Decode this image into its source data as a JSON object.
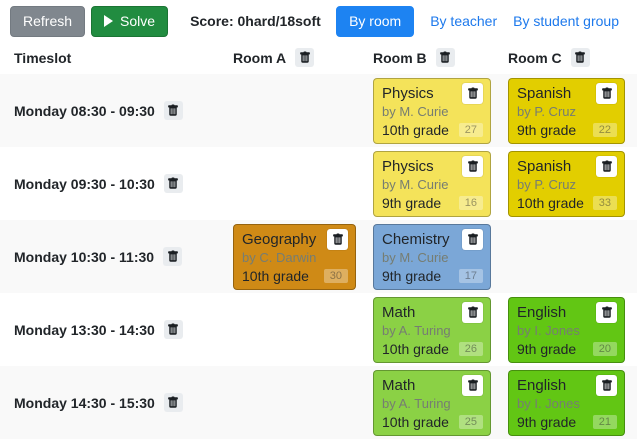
{
  "toolbar": {
    "refresh_label": "Refresh",
    "solve_label": "Solve",
    "score": "Score: 0hard/18soft"
  },
  "view_switcher": {
    "by_room_label": "By room",
    "by_teacher_label": "By teacher",
    "by_student_group_label": "By student group",
    "active_view": "By room",
    "accent_color": "#1d83f2"
  },
  "timetable": {
    "timeslot_header": "Timeslot",
    "room_headers": [
      "Room A",
      "Room B",
      "Room C"
    ],
    "rows": [
      {
        "timeslot": "Monday 08:30 - 09:30",
        "room_b": {
          "subject": "Physics",
          "teacher": "by M. Curie",
          "student_group": "10th grade",
          "id": "27",
          "color": "#f4e35a"
        },
        "room_c": {
          "subject": "Spanish",
          "teacher": "by P. Cruz",
          "student_group": "9th grade",
          "id": "22",
          "color": "#e2ce00"
        }
      },
      {
        "timeslot": "Monday 09:30 - 10:30",
        "room_b": {
          "subject": "Physics",
          "teacher": "by M. Curie",
          "student_group": "9th grade",
          "id": "16",
          "color": "#f4e35a"
        },
        "room_c": {
          "subject": "Spanish",
          "teacher": "by P. Cruz",
          "student_group": "10th grade",
          "id": "33",
          "color": "#e2ce00"
        }
      },
      {
        "timeslot": "Monday 10:30 - 11:30",
        "room_a": {
          "subject": "Geography",
          "teacher": "by C. Darwin",
          "student_group": "10th grade",
          "id": "30",
          "color": "#cf8a16"
        },
        "room_b": {
          "subject": "Chemistry",
          "teacher": "by M. Curie",
          "student_group": "9th grade",
          "id": "17",
          "color": "#7ba7d7"
        }
      },
      {
        "timeslot": "Monday 13:30 - 14:30",
        "room_b": {
          "subject": "Math",
          "teacher": "by A. Turing",
          "student_group": "10th grade",
          "id": "26",
          "color": "#8bd145"
        },
        "room_c": {
          "subject": "English",
          "teacher": "by I. Jones",
          "student_group": "9th grade",
          "id": "20",
          "color": "#62c614"
        }
      },
      {
        "timeslot": "Monday 14:30 - 15:30",
        "room_b": {
          "subject": "Math",
          "teacher": "by A. Turing",
          "student_group": "10th grade",
          "id": "25",
          "color": "#8bd145"
        },
        "room_c": {
          "subject": "English",
          "teacher": "by I. Jones",
          "student_group": "9th grade",
          "id": "21",
          "color": "#62c614"
        }
      }
    ]
  }
}
